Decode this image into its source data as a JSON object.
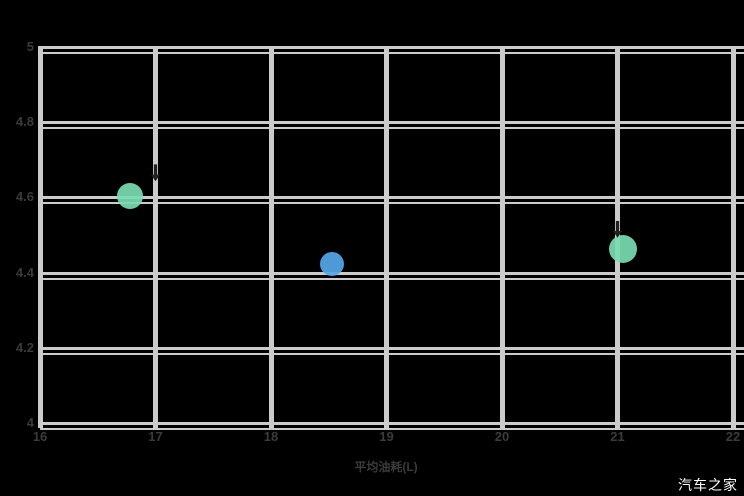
{
  "watermark": {
    "text": "汽车之家",
    "color": "#ffffff"
  },
  "chart_data": {
    "type": "scatter",
    "title": "",
    "xlabel": "平均油耗(L)",
    "ylabel": "",
    "xlim": [
      16,
      22
    ],
    "ylim": [
      4,
      5
    ],
    "x_tick_values": [
      16,
      17,
      18,
      19,
      20,
      21,
      22
    ],
    "x_tick_labels": [
      "16",
      "17",
      "18",
      "19",
      "20",
      "21",
      "22"
    ],
    "y_tick_values": [
      5,
      4.8,
      4.6,
      4.4,
      4.2,
      4
    ],
    "y_tick_labels": [
      "5",
      "4.8",
      "4.6",
      "4.4",
      "4.2",
      "4"
    ],
    "grid": true,
    "legend": null,
    "colors": {
      "background": "#000000",
      "gridline": "#cbcbcb",
      "tick_text": "#3b3b3b",
      "green_point": "#79dcb3",
      "blue_point": "#54a7e8",
      "arrow": "#212121"
    },
    "points": [
      {
        "x": 16.78,
        "y": 4.6,
        "color": "#79dcb3",
        "radius": 13
      },
      {
        "x": 18.53,
        "y": 4.42,
        "color": "#54a7e8",
        "radius": 12
      },
      {
        "x": 21.05,
        "y": 4.46,
        "color": "#79dcb3",
        "radius": 14
      }
    ],
    "annotations": [
      {
        "type": "down-arrow",
        "x": 17.0,
        "y": 4.64
      },
      {
        "type": "down-arrow",
        "x": 21.0,
        "y": 4.49
      }
    ]
  }
}
